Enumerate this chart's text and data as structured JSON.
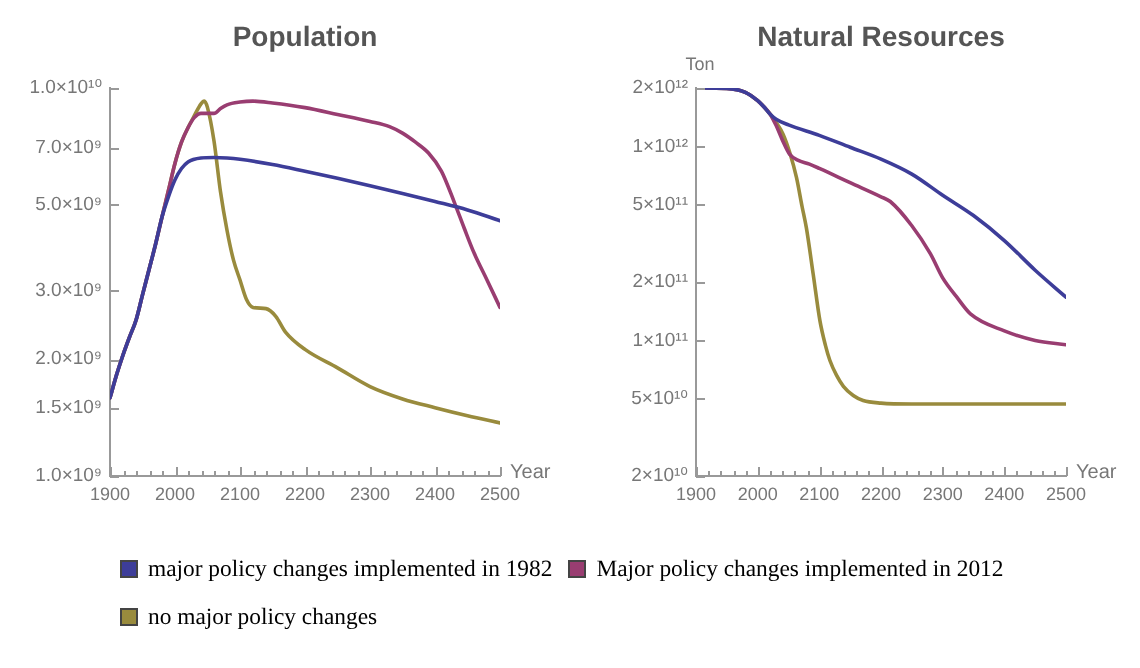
{
  "chart_data": [
    {
      "type": "line",
      "title": "Population",
      "xlabel": "Year",
      "log": true,
      "legend": "bottom",
      "xlim": [
        1900,
        2500
      ],
      "xticks": [
        1900,
        {
          "value": 1920,
          "label": null
        },
        {
          "value": 1940,
          "label": null
        },
        {
          "value": 1960,
          "label": null
        },
        {
          "value": 1980,
          "label": null
        },
        2000,
        {
          "value": 2020,
          "label": null
        },
        {
          "value": 2040,
          "label": null
        },
        {
          "value": 2060,
          "label": null
        },
        {
          "value": 2080,
          "label": null
        },
        2100,
        {
          "value": 2120,
          "label": null
        },
        {
          "value": 2140,
          "label": null
        },
        {
          "value": 2160,
          "label": null
        },
        {
          "value": 2180,
          "label": null
        },
        2200,
        {
          "value": 2220,
          "label": null
        },
        {
          "value": 2240,
          "label": null
        },
        {
          "value": 2260,
          "label": null
        },
        {
          "value": 2280,
          "label": null
        },
        2300,
        {
          "value": 2320,
          "label": null
        },
        {
          "value": 2340,
          "label": null
        },
        {
          "value": 2360,
          "label": null
        },
        {
          "value": 2380,
          "label": null
        },
        2400,
        {
          "value": 2420,
          "label": null
        },
        {
          "value": 2440,
          "label": null
        },
        {
          "value": 2460,
          "label": null
        },
        {
          "value": 2480,
          "label": null
        },
        2500
      ],
      "ylim": [
        1000000000.0,
        10000000000.0
      ],
      "yticks": [
        {
          "value": 1000000000.0,
          "label": "1.0×10⁹"
        },
        {
          "value": 1500000000.0,
          "label": "1.5×10⁹"
        },
        {
          "value": 2000000000.0,
          "label": "2.0×10⁹"
        },
        {
          "value": 3000000000.0,
          "label": "3.0×10⁹"
        },
        {
          "value": 5000000000.0,
          "label": "5.0×10⁹"
        },
        {
          "value": 7000000000.0,
          "label": "7.0×10⁹"
        },
        {
          "value": 10000000000.0,
          "label": "1.0×10¹⁰"
        }
      ],
      "series": [
        {
          "name": "major policy changes implemented in 1982",
          "color": "#3d3d99",
          "x": [
            1900,
            1910,
            1920,
            1930,
            1940,
            1950,
            1960,
            1970,
            1980,
            1990,
            2000,
            2010,
            2020,
            2040,
            2060,
            2080,
            2100,
            2150,
            2200,
            2250,
            2300,
            2350,
            2400,
            2450,
            2500
          ],
          "values": [
            1590000000.0,
            1820000000.0,
            2050000000.0,
            2280000000.0,
            2520000000.0,
            2930000000.0,
            3400000000.0,
            3950000000.0,
            4650000000.0,
            5250000000.0,
            5800000000.0,
            6200000000.0,
            6450000000.0,
            6600000000.0,
            6620000000.0,
            6600000000.0,
            6550000000.0,
            6350000000.0,
            6100000000.0,
            5850000000.0,
            5600000000.0,
            5350000000.0,
            5100000000.0,
            4850000000.0,
            4550000000.0
          ]
        },
        {
          "name": "Major policy changes implemented in 2012",
          "color": "#993d71",
          "x": [
            1900,
            1910,
            1920,
            1930,
            1940,
            1950,
            1960,
            1970,
            1980,
            1990,
            2000,
            2010,
            2020,
            2030,
            2040,
            2050,
            2060,
            2070,
            2080,
            2100,
            2120,
            2150,
            2200,
            2250,
            2300,
            2330,
            2350,
            2370,
            2390,
            2410,
            2430,
            2445,
            2460,
            2480,
            2500
          ],
          "values": [
            1590000000.0,
            1820000000.0,
            2050000000.0,
            2280000000.0,
            2520000000.0,
            2930000000.0,
            3400000000.0,
            3950000000.0,
            4650000000.0,
            5450000000.0,
            6400000000.0,
            7250000000.0,
            7900000000.0,
            8400000000.0,
            8600000000.0,
            8600000000.0,
            8600000000.0,
            8850000000.0,
            9050000000.0,
            9200000000.0,
            9250000000.0,
            9150000000.0,
            8900000000.0,
            8550000000.0,
            8200000000.0,
            7950000000.0,
            7650000000.0,
            7250000000.0,
            6800000000.0,
            6100000000.0,
            5060000000.0,
            4350000000.0,
            3760000000.0,
            3200000000.0,
            2720000000.0
          ]
        },
        {
          "name": "no major policy changes",
          "color": "#998b3d",
          "x": [
            1900,
            1910,
            1920,
            1930,
            1940,
            1950,
            1960,
            1970,
            1980,
            1990,
            2000,
            2010,
            2020,
            2030,
            2040,
            2045,
            2050,
            2060,
            2070,
            2080,
            2090,
            2100,
            2110,
            2120,
            2140,
            2155,
            2170,
            2200,
            2250,
            2300,
            2350,
            2400,
            2450,
            2500
          ],
          "values": [
            1590000000.0,
            1820000000.0,
            2050000000.0,
            2280000000.0,
            2520000000.0,
            2930000000.0,
            3400000000.0,
            3950000000.0,
            4650000000.0,
            5450000000.0,
            6400000000.0,
            7250000000.0,
            7900000000.0,
            8500000000.0,
            9100000000.0,
            9250000000.0,
            8900000000.0,
            7300000000.0,
            5400000000.0,
            4300000000.0,
            3600000000.0,
            3200000000.0,
            2850000000.0,
            2720000000.0,
            2700000000.0,
            2580000000.0,
            2350000000.0,
            2120000000.0,
            1900000000.0,
            1700000000.0,
            1580000000.0,
            1500000000.0,
            1430000000.0,
            1370000000.0
          ]
        }
      ]
    },
    {
      "type": "line",
      "title": "Natural Resources",
      "xlabel": "Year",
      "ylabel": "Ton",
      "log": true,
      "legend": "bottom",
      "xlim": [
        1900,
        2500
      ],
      "xticks": [
        1900,
        {
          "value": 1920,
          "label": null
        },
        {
          "value": 1940,
          "label": null
        },
        {
          "value": 1960,
          "label": null
        },
        {
          "value": 1980,
          "label": null
        },
        2000,
        {
          "value": 2020,
          "label": null
        },
        {
          "value": 2040,
          "label": null
        },
        {
          "value": 2060,
          "label": null
        },
        {
          "value": 2080,
          "label": null
        },
        2100,
        {
          "value": 2120,
          "label": null
        },
        {
          "value": 2140,
          "label": null
        },
        {
          "value": 2160,
          "label": null
        },
        {
          "value": 2180,
          "label": null
        },
        2200,
        {
          "value": 2220,
          "label": null
        },
        {
          "value": 2240,
          "label": null
        },
        {
          "value": 2260,
          "label": null
        },
        {
          "value": 2280,
          "label": null
        },
        2300,
        {
          "value": 2320,
          "label": null
        },
        {
          "value": 2340,
          "label": null
        },
        {
          "value": 2360,
          "label": null
        },
        {
          "value": 2380,
          "label": null
        },
        2400,
        {
          "value": 2420,
          "label": null
        },
        {
          "value": 2440,
          "label": null
        },
        {
          "value": 2460,
          "label": null
        },
        {
          "value": 2480,
          "label": null
        },
        2500
      ],
      "ylim": [
        20000000000.0,
        2000000000000.0
      ],
      "yticks": [
        {
          "value": 20000000000.0,
          "label": "2×10¹⁰"
        },
        {
          "value": 50000000000.0,
          "label": "5×10¹⁰"
        },
        {
          "value": 100000000000.0,
          "label": "1×10¹¹"
        },
        {
          "value": 200000000000.0,
          "label": "2×10¹¹"
        },
        {
          "value": 500000000000.0,
          "label": "5×10¹¹"
        },
        {
          "value": 1000000000000.0,
          "label": "1×10¹²"
        },
        {
          "value": 2000000000000.0,
          "label": "2×10¹²"
        }
      ],
      "series": [
        {
          "name": "major policy changes implemented in 1982",
          "color": "#3d3d99",
          "x": [
            1900,
            1950,
            1980,
            2000,
            2010,
            2020,
            2030,
            2050,
            2100,
            2150,
            2200,
            2250,
            2300,
            2350,
            2400,
            2450,
            2500
          ],
          "values": [
            2000000000000.0,
            1990000000000.0,
            1900000000000.0,
            1720000000000.0,
            1600000000000.0,
            1470000000000.0,
            1380000000000.0,
            1290000000000.0,
            1140000000000.0,
            990000000000.0,
            860000000000.0,
            720000000000.0,
            560000000000.0,
            440000000000.0,
            327000000000.0,
            230000000000.0,
            167000000000.0
          ]
        },
        {
          "name": "Major policy changes implemented in 2012",
          "color": "#993d71",
          "x": [
            1900,
            1950,
            1980,
            2000,
            2010,
            2020,
            2030,
            2040,
            2052,
            2065,
            2084,
            2100,
            2150,
            2200,
            2215,
            2250,
            2280,
            2300,
            2323,
            2345,
            2400,
            2450,
            2500
          ],
          "values": [
            2000000000000.0,
            1990000000000.0,
            1900000000000.0,
            1720000000000.0,
            1600000000000.0,
            1470000000000.0,
            1280000000000.0,
            1080000000000.0,
            910000000000.0,
            850000000000.0,
            810000000000.0,
            770000000000.0,
            650000000000.0,
            550000000000.0,
            520000000000.0,
            390000000000.0,
            280000000000.0,
            210000000000.0,
            167000000000.0,
            137000000000.0,
            112000000000.0,
            100000000000.0,
            95000000000.0
          ]
        },
        {
          "name": "no major policy changes",
          "color": "#998b3d",
          "x": [
            1900,
            1950,
            1980,
            2000,
            2010,
            2020,
            2030,
            2041,
            2052,
            2063,
            2072,
            2079,
            2090,
            2101,
            2110,
            2117,
            2128,
            2139,
            2155,
            2171,
            2200,
            2250,
            2500
          ],
          "values": [
            2000000000000.0,
            1990000000000.0,
            1900000000000.0,
            1720000000000.0,
            1600000000000.0,
            1470000000000.0,
            1330000000000.0,
            1160000000000.0,
            930000000000.0,
            690000000000.0,
            490000000000.0,
            380000000000.0,
            220000000000.0,
            126000000000.0,
            94000000000.0,
            79000000000.0,
            66000000000.0,
            58000000000.0,
            52000000000.0,
            49000000000.0,
            47500000000.0,
            47000000000.0,
            47000000000.0
          ]
        }
      ]
    }
  ]
}
